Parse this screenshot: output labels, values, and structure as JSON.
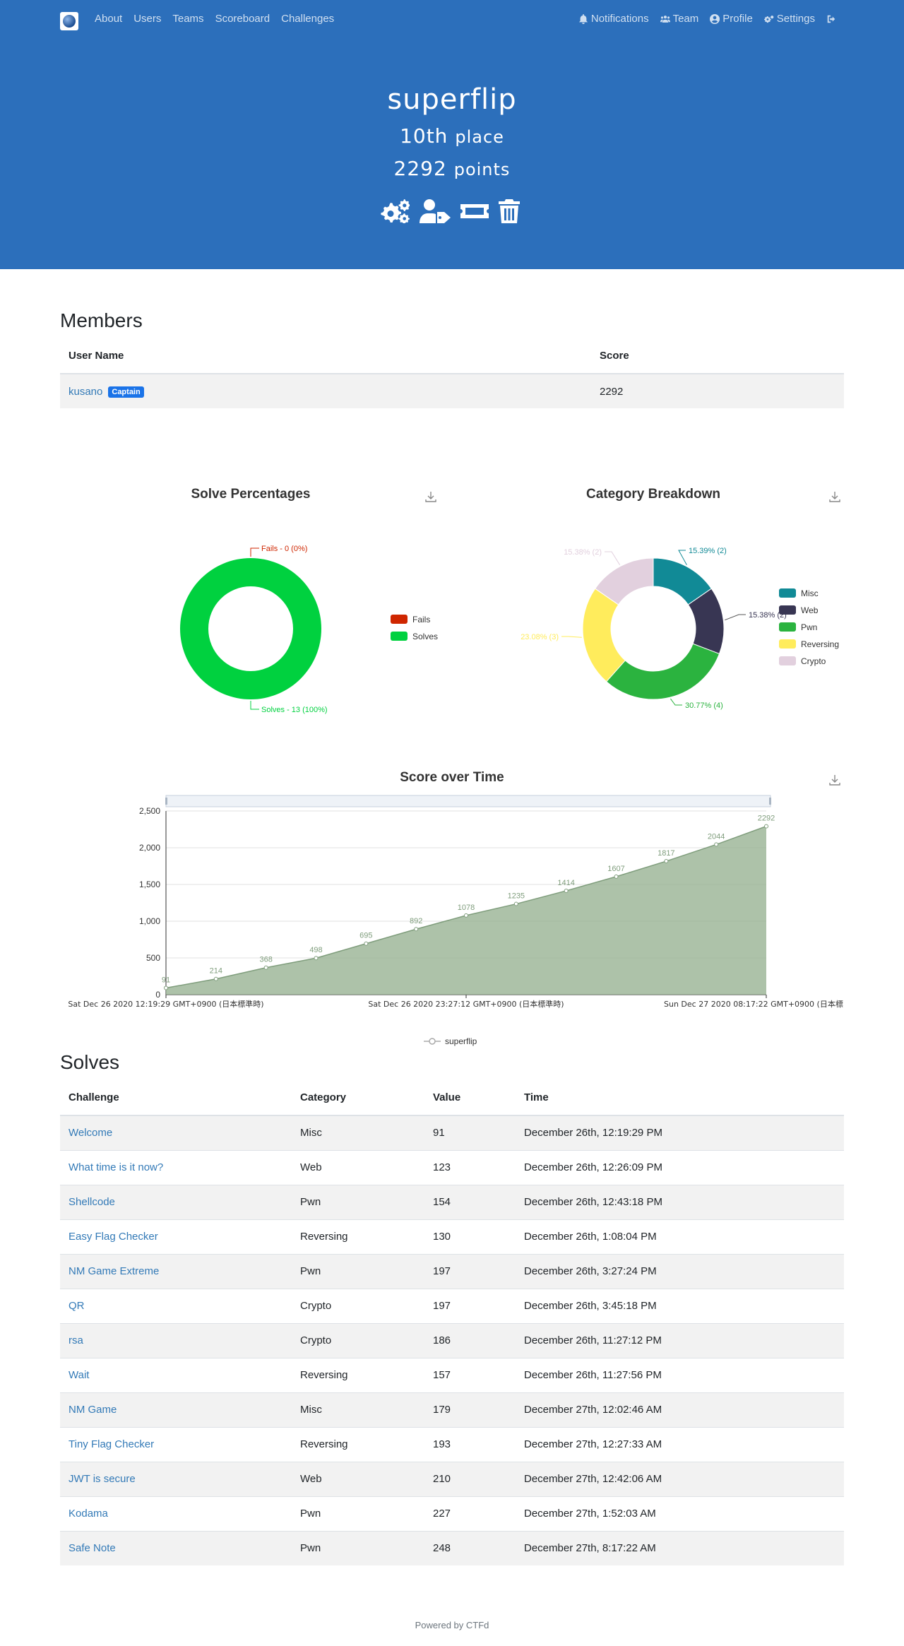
{
  "nav": {
    "left": [
      "About",
      "Users",
      "Teams",
      "Scoreboard",
      "Challenges"
    ],
    "right": [
      {
        "label": "Notifications",
        "icon": "bell-icon"
      },
      {
        "label": "Team",
        "icon": "users-icon"
      },
      {
        "label": "Profile",
        "icon": "user-circle-icon"
      },
      {
        "label": "Settings",
        "icon": "gears-icon"
      },
      {
        "label": "",
        "icon": "logout-icon"
      }
    ]
  },
  "team": {
    "name": "superflip",
    "place": "10th",
    "place_word": "place",
    "points": "2292",
    "points_word": "points"
  },
  "members": {
    "title": "Members",
    "headers": [
      "User Name",
      "Score"
    ],
    "rows": [
      {
        "name": "kusano",
        "badge": "Captain",
        "score": "2292"
      }
    ]
  },
  "charts": {
    "solve_title": "Solve Percentages",
    "category_title": "Category Breakdown",
    "score_title": "Score over Time"
  },
  "chart_data": [
    {
      "type": "pie",
      "title": "Solve Percentages",
      "categories": [
        "Fails",
        "Solves"
      ],
      "values": [
        0,
        13
      ],
      "labels": [
        "Fails - 0 (0%)",
        "Solves - 13 (100%)"
      ],
      "colors": [
        "#cf2600",
        "#00d13f"
      ],
      "legend": "right"
    },
    {
      "type": "pie",
      "title": "Category Breakdown",
      "categories": [
        "Misc",
        "Web",
        "Pwn",
        "Reversing",
        "Crypto"
      ],
      "values": [
        2,
        2,
        4,
        3,
        2
      ],
      "labels": [
        "15.39% (2)",
        "15.38% (2)",
        "30.77% (4)",
        "23.08% (3)",
        "15.38% (2)"
      ],
      "colors": [
        "#118a96",
        "#383653",
        "#2bb33f",
        "#ffec5c",
        "#e2d0de"
      ],
      "legend": "right"
    },
    {
      "type": "area",
      "title": "Score over Time",
      "series": [
        {
          "name": "superflip",
          "values": [
            91,
            214,
            368,
            498,
            695,
            892,
            1078,
            1235,
            1414,
            1607,
            1817,
            2044,
            2292
          ]
        }
      ],
      "x_ticks": [
        "Sat Dec 26 2020 12:19:29 GMT+0900 (日本標準時)",
        "Sat Dec 26 2020 23:27:12 GMT+0900 (日本標準時)",
        "Sun Dec 27 2020 08:17:22 GMT+0900 (日本標"
      ],
      "y_ticks": [
        "0",
        "500",
        "1,000",
        "1,500",
        "2,000",
        "2,500"
      ],
      "ylim": [
        0,
        2500
      ],
      "grid": true,
      "legend": "bottom",
      "color": "#98b394"
    }
  ],
  "solves": {
    "title": "Solves",
    "headers": [
      "Challenge",
      "Category",
      "Value",
      "Time"
    ],
    "rows": [
      {
        "challenge": "Welcome",
        "category": "Misc",
        "value": "91",
        "time": "December 26th, 12:19:29 PM"
      },
      {
        "challenge": "What time is it now?",
        "category": "Web",
        "value": "123",
        "time": "December 26th, 12:26:09 PM"
      },
      {
        "challenge": "Shellcode",
        "category": "Pwn",
        "value": "154",
        "time": "December 26th, 12:43:18 PM"
      },
      {
        "challenge": "Easy Flag Checker",
        "category": "Reversing",
        "value": "130",
        "time": "December 26th, 1:08:04 PM"
      },
      {
        "challenge": "NM Game Extreme",
        "category": "Pwn",
        "value": "197",
        "time": "December 26th, 3:27:24 PM"
      },
      {
        "challenge": "QR",
        "category": "Crypto",
        "value": "197",
        "time": "December 26th, 3:45:18 PM"
      },
      {
        "challenge": "rsa",
        "category": "Crypto",
        "value": "186",
        "time": "December 26th, 11:27:12 PM"
      },
      {
        "challenge": "Wait",
        "category": "Reversing",
        "value": "157",
        "time": "December 26th, 11:27:56 PM"
      },
      {
        "challenge": "NM Game",
        "category": "Misc",
        "value": "179",
        "time": "December 27th, 12:02:46 AM"
      },
      {
        "challenge": "Tiny Flag Checker",
        "category": "Reversing",
        "value": "193",
        "time": "December 27th, 12:27:33 AM"
      },
      {
        "challenge": "JWT is secure",
        "category": "Web",
        "value": "210",
        "time": "December 27th, 12:42:06 AM"
      },
      {
        "challenge": "Kodama",
        "category": "Pwn",
        "value": "227",
        "time": "December 27th, 1:52:03 AM"
      },
      {
        "challenge": "Safe Note",
        "category": "Pwn",
        "value": "248",
        "time": "December 27th, 8:17:22 AM"
      }
    ]
  },
  "footer": "Powered by CTFd"
}
